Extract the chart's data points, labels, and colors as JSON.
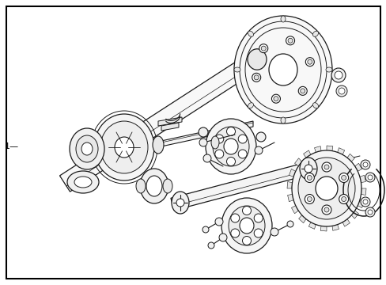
{
  "background_color": "#ffffff",
  "border_color": "#000000",
  "line_color": "#1a1a1a",
  "label_1": "1—",
  "fig_width": 4.89,
  "fig_height": 3.6,
  "dpi": 100
}
